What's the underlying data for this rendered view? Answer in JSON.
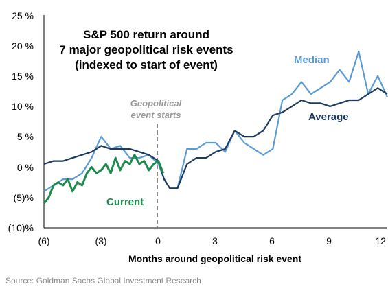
{
  "chart_data": {
    "type": "line",
    "title_lines": [
      "S&P 500 return around",
      "7 major geopolitical risk events",
      "(indexed to start of event)"
    ],
    "xlabel": "Months around geopolitical risk event",
    "ylabel": "",
    "xlim": [
      -6,
      12
    ],
    "ylim": [
      -10,
      25
    ],
    "x_ticks": [
      {
        "v": -6,
        "label": "(6)"
      },
      {
        "v": -3,
        "label": "(3)"
      },
      {
        "v": 0,
        "label": "0"
      },
      {
        "v": 3,
        "label": "3"
      },
      {
        "v": 6,
        "label": "6"
      },
      {
        "v": 9,
        "label": "9"
      },
      {
        "v": 12,
        "label": "12"
      }
    ],
    "y_ticks": [
      {
        "v": 25,
        "label": "25 %"
      },
      {
        "v": 20,
        "label": "20 %"
      },
      {
        "v": 15,
        "label": "15 %"
      },
      {
        "v": 10,
        "label": "10 %"
      },
      {
        "v": 5,
        "label": "5 %"
      },
      {
        "v": 0,
        "label": "0 %"
      },
      {
        "v": -5,
        "label": "(5)%"
      },
      {
        "v": -10,
        "label": "(10)%"
      }
    ],
    "annotation": [
      "Geopolitical",
      "event starts"
    ],
    "grid": false,
    "series": [
      {
        "name": "Median",
        "color": "#5b9bd5",
        "x": [
          -6,
          -5.5,
          -5,
          -4.5,
          -4,
          -3.5,
          -3,
          -2.5,
          -2,
          -1.5,
          -1,
          -0.5,
          0,
          0.3,
          0.6,
          1,
          1.5,
          2,
          2.5,
          3,
          3.5,
          4,
          4.5,
          5,
          5.5,
          6,
          6.5,
          7,
          7.5,
          8,
          8.5,
          9,
          9.5,
          10,
          10.5,
          11,
          11.5,
          12
        ],
        "y": [
          -4,
          -3,
          -2,
          -2,
          -1,
          1.5,
          5,
          3,
          3.5,
          1.5,
          1.5,
          2,
          0.5,
          -2,
          -3.5,
          -3.5,
          3,
          3,
          4,
          4,
          2.5,
          6,
          4,
          3,
          2,
          3,
          11,
          12,
          14,
          12,
          13,
          14,
          16,
          14,
          19,
          12,
          15,
          11.5
        ]
      },
      {
        "name": "Average",
        "color": "#1f3a5f",
        "x": [
          -6,
          -5.5,
          -5,
          -4.5,
          -4,
          -3.5,
          -3,
          -2.5,
          -2,
          -1.5,
          -1,
          -0.5,
          0,
          0.3,
          0.6,
          1,
          1.5,
          2,
          2.5,
          3,
          3.5,
          4,
          4.5,
          5,
          5.5,
          6,
          6.5,
          7,
          7.5,
          8,
          8.5,
          9,
          9.5,
          10,
          10.5,
          11,
          11.5,
          12
        ],
        "y": [
          0.5,
          1,
          1,
          1.5,
          2,
          2.5,
          3.5,
          3,
          3,
          3,
          2.5,
          2,
          1,
          -2,
          -3.5,
          -3.5,
          0.5,
          1.5,
          1.5,
          2.5,
          3,
          6,
          5,
          5,
          6,
          8.5,
          9,
          10,
          11,
          10.5,
          10.5,
          10,
          10.5,
          11,
          11,
          12,
          13,
          12
        ]
      },
      {
        "name": "Current",
        "color": "#1e8a4c",
        "x": [
          -6,
          -5.75,
          -5.5,
          -5.25,
          -5,
          -4.75,
          -4.5,
          -4.25,
          -4,
          -3.75,
          -3.5,
          -3.25,
          -3,
          -2.75,
          -2.5,
          -2.25,
          -2,
          -1.75,
          -1.5,
          -1.25,
          -1,
          -0.75,
          -0.5,
          -0.25,
          0,
          0.25
        ],
        "y": [
          -6,
          -5,
          -3,
          -2.5,
          -3,
          -2,
          -4,
          -2.5,
          -3,
          -1,
          0,
          -1,
          -0.5,
          0.5,
          -1,
          1.5,
          -0.5,
          1,
          0.5,
          2,
          0.5,
          1,
          -0.5,
          0.5,
          1,
          -1
        ]
      }
    ],
    "series_labels": [
      {
        "text": "Median",
        "color": "#5b9bd5"
      },
      {
        "text": "Average",
        "color": "#1f3a5f"
      },
      {
        "text": "Current",
        "color": "#1e8a4c"
      }
    ],
    "source": "Source: Goldman Sachs Global Investment Research"
  }
}
